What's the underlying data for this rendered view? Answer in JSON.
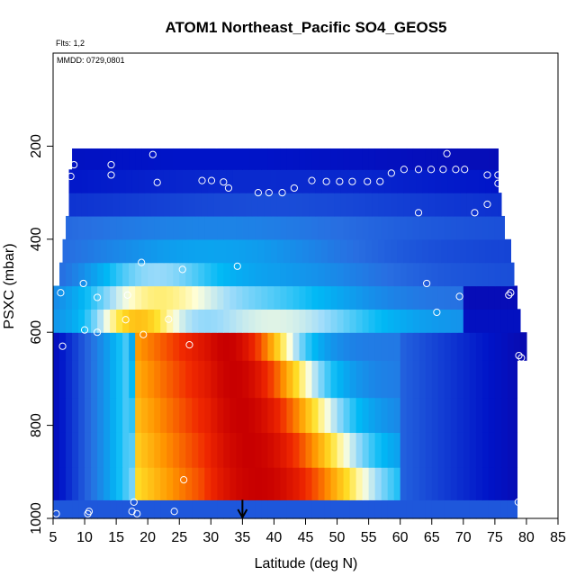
{
  "chart_data": {
    "type": "heatmap",
    "title": "ATOM1 Northeast_Pacific SO4_GEOS5",
    "flights_label": "Flts: 1,2",
    "dates_label": "MMDD: 0729,0801",
    "xlabel": "Latitude (deg N)",
    "ylabel": "PSXC (mbar)",
    "xlim": [
      5,
      85
    ],
    "ylim": [
      1000,
      0
    ],
    "x_ticks": [
      "5",
      "10",
      "15",
      "20",
      "25",
      "30",
      "35",
      "40",
      "45",
      "50",
      "55",
      "60",
      "65",
      "70",
      "75",
      "80",
      "85"
    ],
    "y_ticks": [
      "200",
      "400",
      "600",
      "800",
      "1000"
    ],
    "marker_latitude": 35,
    "level_pressures": [
      990,
      925,
      850,
      775,
      700,
      625,
      575,
      525,
      475,
      425,
      375,
      325,
      275,
      225
    ],
    "flight_points": [
      {
        "x": 5.5,
        "y": 990
      },
      {
        "x": 6.2,
        "y": 515
      },
      {
        "x": 6.5,
        "y": 630
      },
      {
        "x": 7.8,
        "y": 265
      },
      {
        "x": 8.3,
        "y": 240
      },
      {
        "x": 9.8,
        "y": 495
      },
      {
        "x": 10.0,
        "y": 595
      },
      {
        "x": 10.5,
        "y": 990
      },
      {
        "x": 10.7,
        "y": 985
      },
      {
        "x": 12.0,
        "y": 525
      },
      {
        "x": 12.0,
        "y": 600
      },
      {
        "x": 14.2,
        "y": 240
      },
      {
        "x": 14.2,
        "y": 262
      },
      {
        "x": 16.5,
        "y": 573
      },
      {
        "x": 16.8,
        "y": 520
      },
      {
        "x": 17.5,
        "y": 985
      },
      {
        "x": 17.8,
        "y": 965
      },
      {
        "x": 18.3,
        "y": 990
      },
      {
        "x": 19.0,
        "y": 450
      },
      {
        "x": 19.3,
        "y": 605
      },
      {
        "x": 20.8,
        "y": 218
      },
      {
        "x": 21.5,
        "y": 278
      },
      {
        "x": 23.3,
        "y": 572
      },
      {
        "x": 24.2,
        "y": 985
      },
      {
        "x": 25.5,
        "y": 465
      },
      {
        "x": 25.7,
        "y": 917
      },
      {
        "x": 26.6,
        "y": 627
      },
      {
        "x": 28.2,
        "y": 197
      },
      {
        "x": 28.6,
        "y": 274
      },
      {
        "x": 30.1,
        "y": 274
      },
      {
        "x": 30.9,
        "y": 197
      },
      {
        "x": 32.0,
        "y": 277
      },
      {
        "x": 32.8,
        "y": 290
      },
      {
        "x": 34.2,
        "y": 458
      },
      {
        "x": 37.5,
        "y": 300
      },
      {
        "x": 39.2,
        "y": 300
      },
      {
        "x": 41.3,
        "y": 300
      },
      {
        "x": 43.2,
        "y": 290
      },
      {
        "x": 46.0,
        "y": 274
      },
      {
        "x": 48.3,
        "y": 276
      },
      {
        "x": 50.4,
        "y": 276
      },
      {
        "x": 52.4,
        "y": 276
      },
      {
        "x": 54.8,
        "y": 276
      },
      {
        "x": 56.8,
        "y": 276
      },
      {
        "x": 58.6,
        "y": 258
      },
      {
        "x": 60.6,
        "y": 250
      },
      {
        "x": 62.9,
        "y": 250
      },
      {
        "x": 62.9,
        "y": 343
      },
      {
        "x": 64.2,
        "y": 495
      },
      {
        "x": 64.9,
        "y": 250
      },
      {
        "x": 65.8,
        "y": 557
      },
      {
        "x": 66.8,
        "y": 250
      },
      {
        "x": 67.4,
        "y": 216
      },
      {
        "x": 68.8,
        "y": 250
      },
      {
        "x": 69.4,
        "y": 523
      },
      {
        "x": 70.2,
        "y": 250
      },
      {
        "x": 71.8,
        "y": 343
      },
      {
        "x": 73.8,
        "y": 262
      },
      {
        "x": 73.8,
        "y": 325
      },
      {
        "x": 75.5,
        "y": 262
      },
      {
        "x": 75.5,
        "y": 280
      },
      {
        "x": 77.2,
        "y": 520
      },
      {
        "x": 77.5,
        "y": 515
      },
      {
        "x": 78.7,
        "y": 965
      },
      {
        "x": 78.8,
        "y": 650
      },
      {
        "x": 79.2,
        "y": 655
      }
    ]
  }
}
